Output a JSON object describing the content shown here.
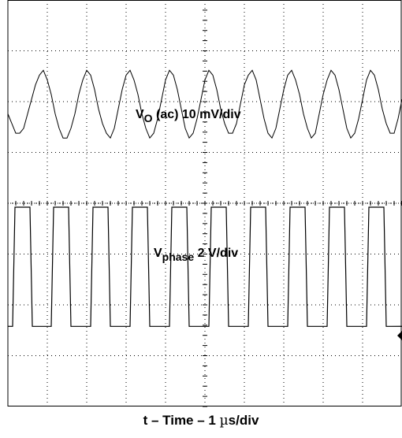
{
  "chart_data": {
    "type": "line",
    "x_unit": "µs",
    "x_divisions": 10,
    "y_divisions": 8,
    "xlim": [
      0,
      10
    ],
    "xlabel": {
      "prefix": "t – Time – 1 ",
      "mu": "µ",
      "suffix": "s/div"
    },
    "series": [
      {
        "name": "V_O (ac)",
        "label": {
          "main": "V",
          "sub": "O",
          "rest": " (ac) 10 mV/div"
        },
        "scale": "10 mV/div",
        "waveform": "ripple",
        "period_us": 1.0,
        "amplitude_mV_pp": 14,
        "center_div": 2.05,
        "x": [
          0,
          0.1,
          0.2,
          0.3,
          0.4,
          0.5,
          0.6,
          0.7,
          0.8,
          0.9,
          1.0,
          1.1,
          1.2,
          1.3,
          1.4,
          1.5,
          1.6,
          1.7,
          1.8,
          1.9,
          2.0,
          2.1,
          2.2,
          2.3,
          2.4,
          2.5,
          2.6,
          2.7,
          2.8,
          2.9,
          3.0,
          3.1,
          3.2,
          3.3,
          3.4,
          3.5,
          3.6,
          3.7,
          3.8,
          3.9,
          4.0,
          4.1,
          4.2,
          4.3,
          4.4,
          4.5,
          4.6,
          4.7,
          4.8,
          4.9,
          5.0,
          5.1,
          5.2,
          5.3,
          5.4,
          5.5,
          5.6,
          5.7,
          5.8,
          5.9,
          6.0,
          6.1,
          6.2,
          6.3,
          6.4,
          6.5,
          6.6,
          6.7,
          6.8,
          6.9,
          7.0,
          7.1,
          7.2,
          7.3,
          7.4,
          7.5,
          7.6,
          7.7,
          7.8,
          7.9,
          8.0,
          8.1,
          8.2,
          8.3,
          8.4,
          8.5,
          8.6,
          8.7,
          8.8,
          8.9,
          9.0,
          9.1,
          9.2,
          9.3,
          9.4,
          9.5,
          9.6,
          9.7,
          9.8,
          9.9,
          10.0
        ],
        "y_mV": [
          -2,
          -4,
          -6,
          -6,
          -5,
          -2,
          1,
          4,
          6,
          7,
          5,
          2,
          -2,
          -5,
          -7,
          -7,
          -5,
          -2,
          2,
          5,
          7,
          6,
          3,
          -1,
          -4,
          -6,
          -7,
          -5,
          -1,
          3,
          6,
          7,
          5,
          2,
          -2,
          -5,
          -7,
          -6,
          -3,
          1,
          5,
          7,
          6,
          3,
          -1,
          -5,
          -7,
          -6,
          -3,
          1,
          5,
          7,
          6,
          3,
          -1,
          -4,
          -6,
          -6,
          -4,
          0,
          4,
          6,
          7,
          5,
          1,
          -3,
          -6,
          -7,
          -5,
          -1,
          3,
          6,
          7,
          5,
          2,
          -2,
          -5,
          -7,
          -6,
          -2,
          2,
          5,
          7,
          6,
          3,
          -1,
          -5,
          -7,
          -6,
          -3,
          1,
          5,
          7,
          6,
          3,
          -1,
          -4,
          -6,
          -6,
          -3,
          1
        ]
      },
      {
        "name": "V_phase",
        "label": {
          "main": "V",
          "sub": "phase",
          "rest": " 2 V/div"
        },
        "scale": "2 V/div",
        "waveform": "square",
        "period_us": 1.0,
        "duty": 0.52,
        "high_V": 5,
        "low_V": 0,
        "low_level_div": 6.5,
        "high_level_div": 4.0,
        "edges_rise_us": [
          0.12,
          1.1,
          2.1,
          3.1,
          4.1,
          5.1,
          6.1,
          7.1,
          8.1,
          9.1
        ],
        "edges_fall_us": [
          0.62,
          1.6,
          2.6,
          3.6,
          4.6,
          5.6,
          6.6,
          7.6,
          8.6,
          9.6
        ]
      }
    ],
    "grid": true,
    "legend": "none"
  }
}
